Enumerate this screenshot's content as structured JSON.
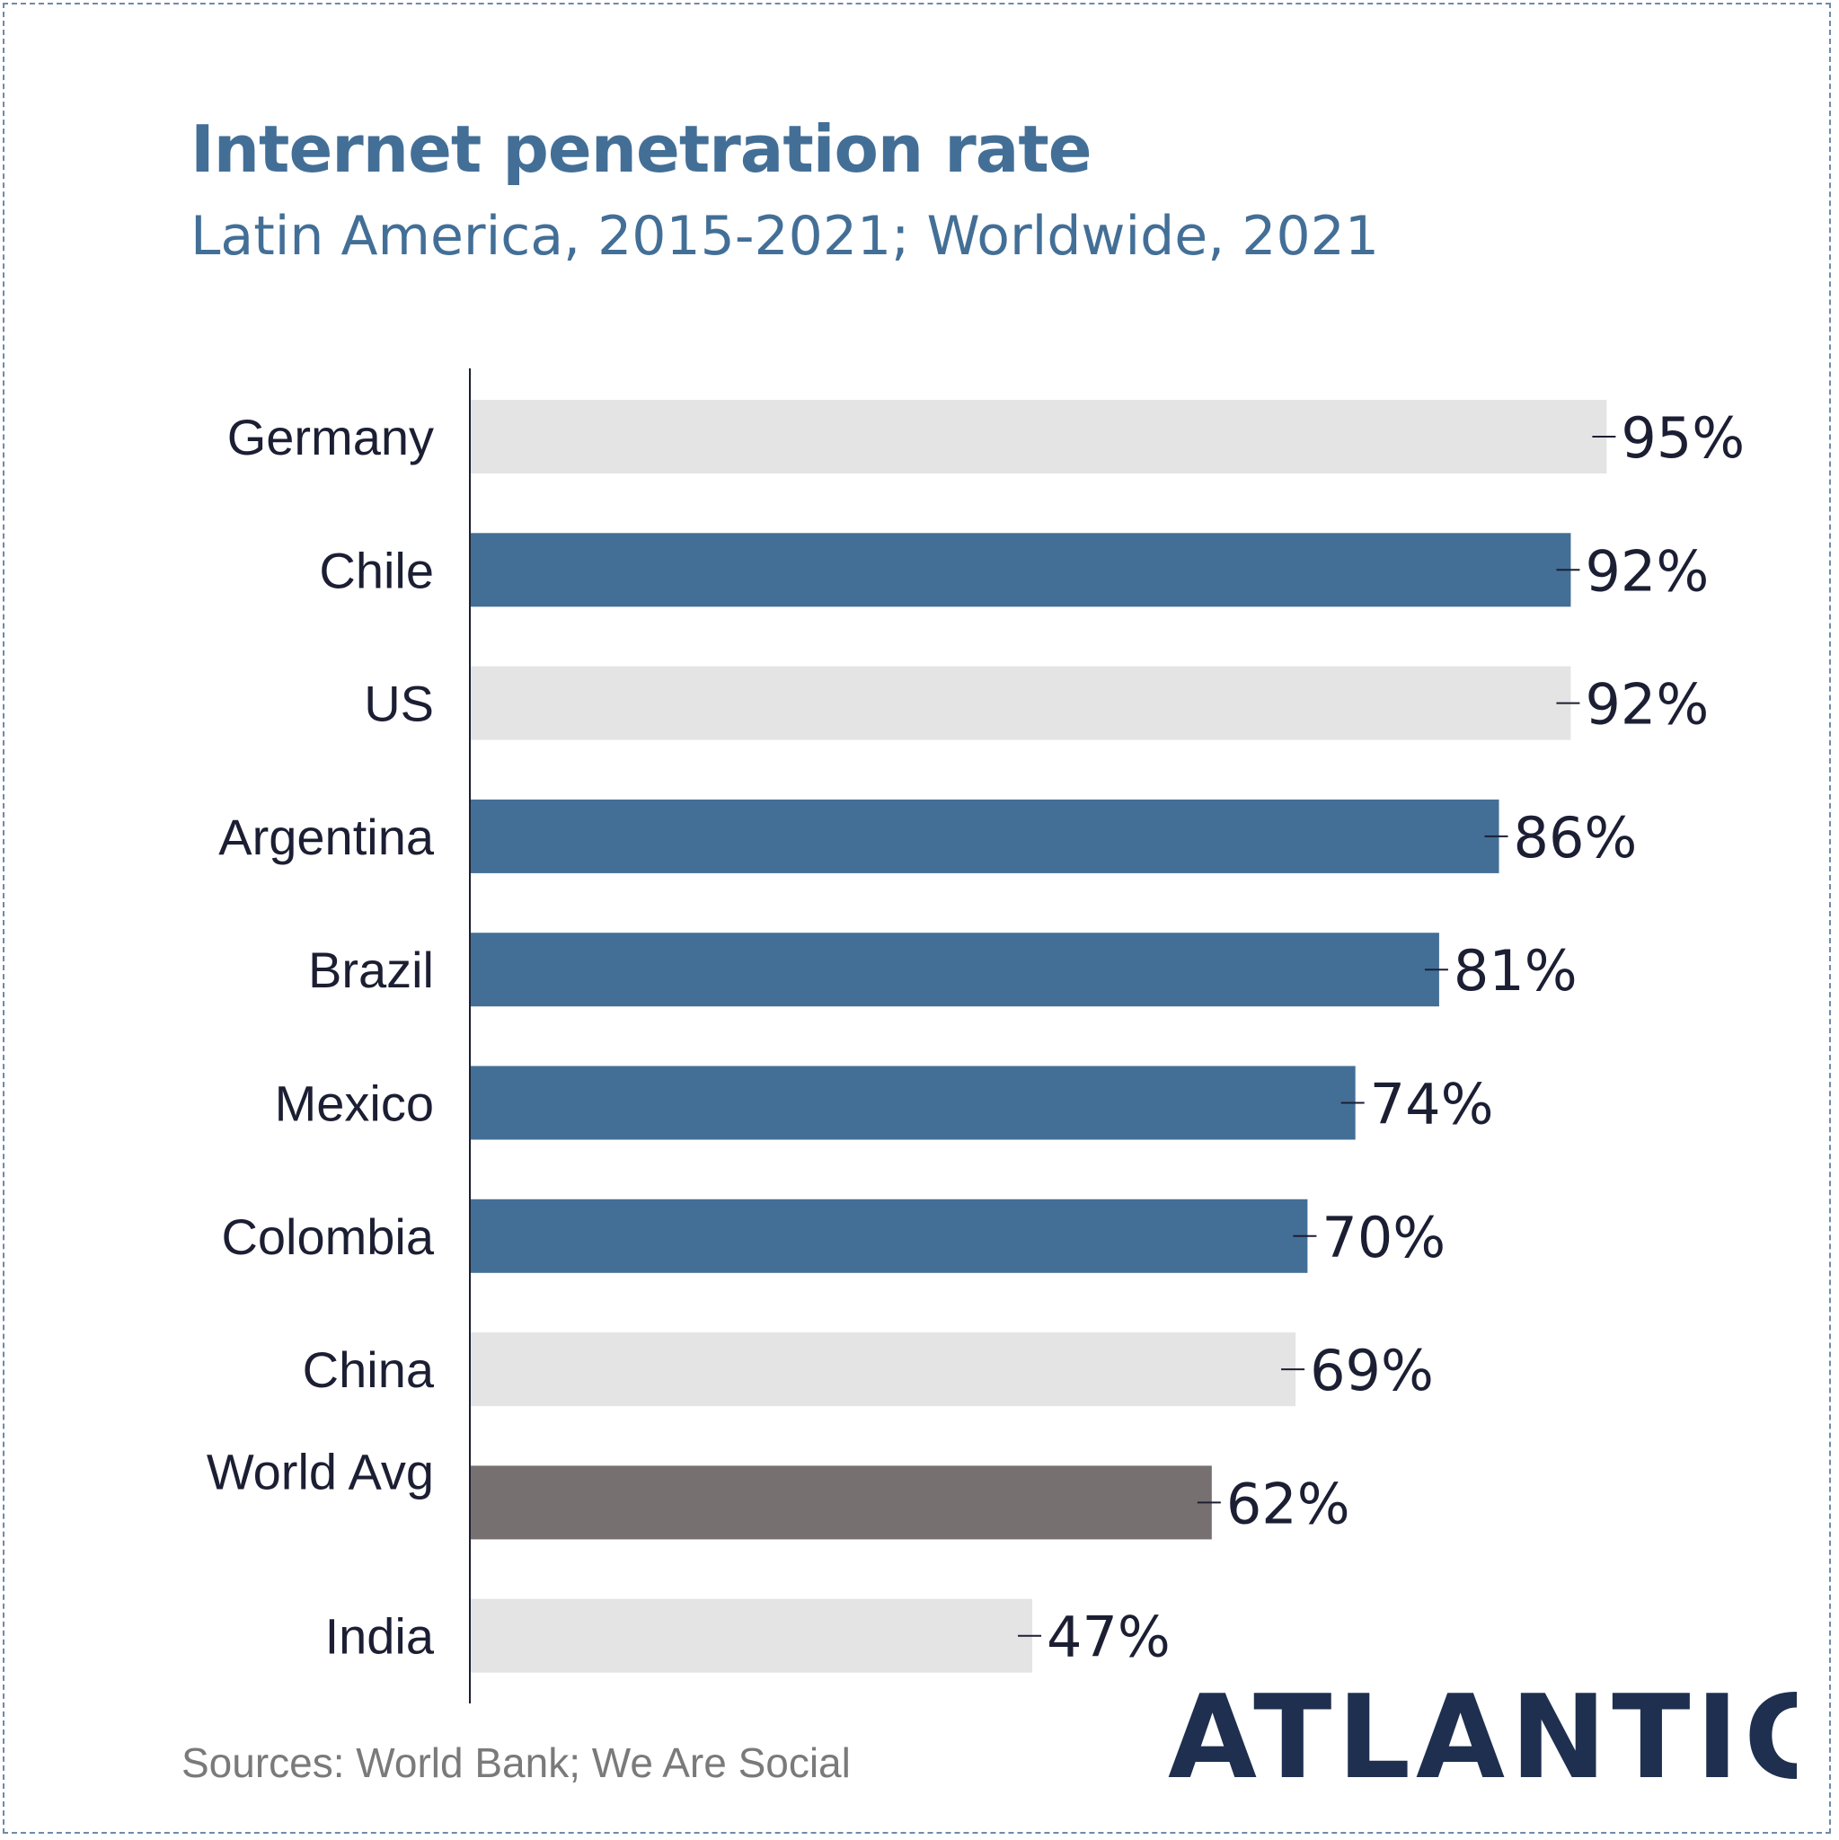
{
  "title": "Internet penetration rate",
  "subtitle": "Latin America, 2015-2021; Worldwide, 2021",
  "source": "Sources: World Bank; We Are Social",
  "logo": "ATLANTICO",
  "colors": {
    "title": "#436f97",
    "latam_bar": "#436f97",
    "other_bar": "#e4e4e4",
    "world_avg_bar": "#767170",
    "text": "#1c1f33",
    "logo": "#1f2f4f"
  },
  "chart_data": {
    "type": "bar",
    "orientation": "horizontal",
    "title": "Internet penetration rate",
    "subtitle": "Latin America, 2015-2021; Worldwide, 2021",
    "categories": [
      "Germany",
      "Chile",
      "US",
      "Argentina",
      "Brazil",
      "Mexico",
      "Colombia",
      "China",
      "World Avg",
      "India"
    ],
    "values": [
      95,
      92,
      92,
      86,
      81,
      74,
      70,
      69,
      62,
      47
    ],
    "value_labels": [
      "95%",
      "92%",
      "92%",
      "86%",
      "81%",
      "74%",
      "70%",
      "69%",
      "62%",
      "47%"
    ],
    "bar_groups": [
      "other",
      "latam",
      "other",
      "latam",
      "latam",
      "latam",
      "latam",
      "other",
      "world",
      "other"
    ],
    "xlim": [
      0,
      100
    ],
    "grid": false,
    "legend": "none",
    "source": "Sources: World Bank; We Are Social"
  }
}
